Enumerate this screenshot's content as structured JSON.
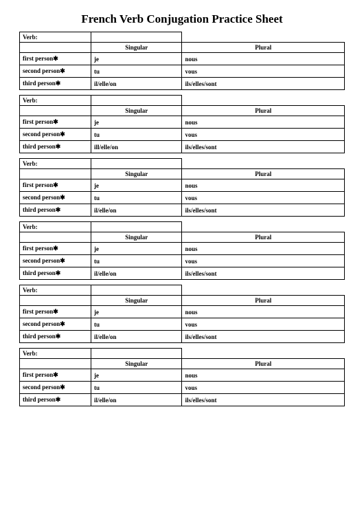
{
  "title": "French Verb Conjugation Practice Sheet",
  "verb_label": "Verb:",
  "header_singular": "Singular",
  "header_plural": "Plural",
  "rows": {
    "first": {
      "label": "first person",
      "sing": "je",
      "plur": "nous"
    },
    "second": {
      "label": "second person",
      "sing": "tu",
      "plur": "vous"
    },
    "third": {
      "label": "third person",
      "sing_default": "il/elle/on",
      "sing_variant": "ill/elle/on",
      "plur": "ils/elles/sont"
    }
  },
  "blocks": [
    {
      "third_sing_key": "sing_default"
    },
    {
      "third_sing_key": "sing_variant"
    },
    {
      "third_sing_key": "sing_default"
    },
    {
      "third_sing_key": "sing_default"
    },
    {
      "third_sing_key": "sing_default"
    },
    {
      "third_sing_key": "sing_default"
    }
  ],
  "star": "✱"
}
